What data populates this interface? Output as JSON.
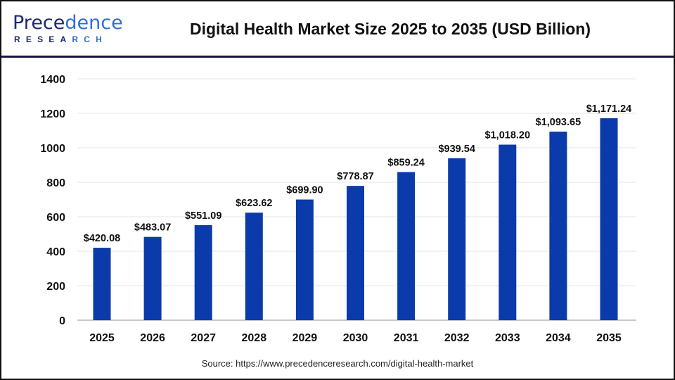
{
  "header": {
    "logo_text": "Precedence",
    "logo_subtext": "RESEARCH",
    "title": "Digital Health Market Size 2025 to 2035 (USD Billion)"
  },
  "footer": {
    "source": "Source: https://www.precedenceresearch.com/digital-health-market"
  },
  "chart_data": {
    "type": "bar",
    "title": "Digital Health Market Size 2025 to 2035 (USD Billion)",
    "categories": [
      "2025",
      "2026",
      "2027",
      "2028",
      "2029",
      "2030",
      "2031",
      "2032",
      "2033",
      "2034",
      "2035"
    ],
    "values": [
      420.08,
      483.07,
      551.09,
      623.62,
      699.9,
      778.87,
      859.24,
      939.54,
      1018.2,
      1093.65,
      1171.24
    ],
    "data_labels": [
      "$420.08",
      "$483.07",
      "$551.09",
      "$623.62",
      "$699.90",
      "$778.87",
      "$859.24",
      "$939.54",
      "$1,018.20",
      "$1,093.65",
      "$1,171.24"
    ],
    "yticks": [
      0,
      200,
      400,
      600,
      800,
      1000,
      1200,
      1400
    ],
    "ylim": [
      0,
      1400
    ],
    "xlabel": "",
    "ylabel": "",
    "grid": true,
    "bar_color": "#0b3aaa"
  }
}
